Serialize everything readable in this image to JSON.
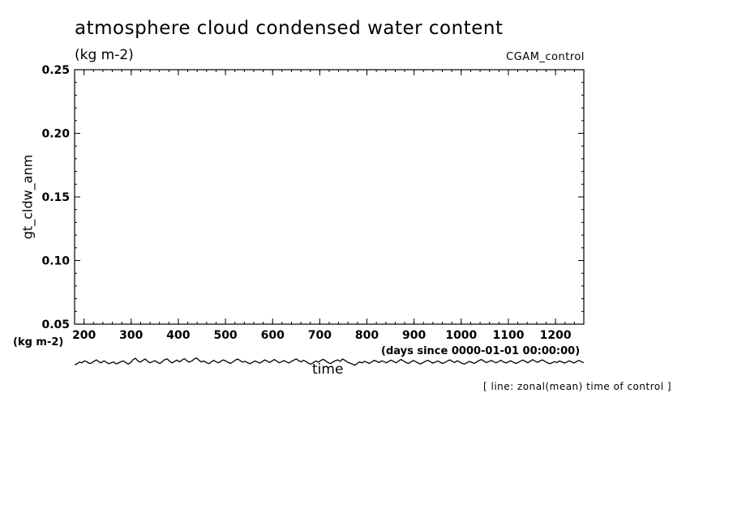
{
  "chart_data": {
    "type": "line",
    "title": "atmosphere cloud condensed water content",
    "units": "(kg m-2)",
    "dataset": "CGAM_control",
    "ylabel": "gt_cldw_anm",
    "yunits": "(kg m-2)",
    "xlabel": "time",
    "xunits": "(days since 0000-01-01 00:00:00)",
    "note": "[ line: zonal(mean) time of control ]",
    "xlim": [
      180,
      1260
    ],
    "ylim": [
      0.05,
      0.25
    ],
    "x_ticks": [
      200,
      300,
      400,
      500,
      600,
      700,
      800,
      900,
      1000,
      1100,
      1200
    ],
    "x_tick_labels": [
      "200",
      "300",
      "400",
      "500",
      "600",
      "700",
      "800",
      "900",
      "1000",
      "1100",
      "1200"
    ],
    "y_ticks": [
      0.05,
      0.1,
      0.15,
      0.2,
      0.25
    ],
    "y_tick_labels": [
      "0.05",
      "0.10",
      "0.15",
      "0.20",
      "0.25"
    ],
    "grid": false,
    "series": [
      {
        "x_start": 180,
        "x_end": 1260,
        "values": [
          0.0181,
          0.0188,
          0.0202,
          0.0196,
          0.0211,
          0.0205,
          0.0191,
          0.0195,
          0.0208,
          0.0219,
          0.0203,
          0.0197,
          0.0212,
          0.02,
          0.019,
          0.0196,
          0.0203,
          0.0188,
          0.0194,
          0.0205,
          0.0211,
          0.0199,
          0.0186,
          0.0198,
          0.0221,
          0.0232,
          0.021,
          0.0201,
          0.0215,
          0.0226,
          0.0208,
          0.0196,
          0.0206,
          0.0213,
          0.0199,
          0.0191,
          0.0205,
          0.0221,
          0.0227,
          0.0209,
          0.0195,
          0.0207,
          0.0218,
          0.0203,
          0.0216,
          0.0229,
          0.0214,
          0.0201,
          0.0209,
          0.0224,
          0.0235,
          0.0218,
          0.0203,
          0.0211,
          0.0199,
          0.0189,
          0.0201,
          0.0216,
          0.0205,
          0.0196,
          0.0208,
          0.0219,
          0.0211,
          0.02,
          0.0192,
          0.0204,
          0.0217,
          0.0226,
          0.0213,
          0.0201,
          0.0208,
          0.0197,
          0.0189,
          0.0199,
          0.0211,
          0.0202,
          0.0194,
          0.0206,
          0.0219,
          0.021,
          0.0199,
          0.0211,
          0.0222,
          0.0209,
          0.0196,
          0.0205,
          0.0214,
          0.0203,
          0.0195,
          0.0207,
          0.0218,
          0.0227,
          0.0213,
          0.0204,
          0.0216,
          0.0206,
          0.0193,
          0.0186,
          0.0198,
          0.021,
          0.0201,
          0.0214,
          0.0224,
          0.0212,
          0.0199,
          0.019,
          0.0202,
          0.0213,
          0.0219,
          0.0207,
          0.0226,
          0.0215,
          0.0201,
          0.0194,
          0.0186,
          0.0178,
          0.0191,
          0.0203,
          0.0195,
          0.0208,
          0.02,
          0.0191,
          0.0204,
          0.0216,
          0.0207,
          0.0198,
          0.0212,
          0.0205,
          0.0196,
          0.0208,
          0.0217,
          0.0206,
          0.0196,
          0.0211,
          0.0222,
          0.0211,
          0.0199,
          0.0191,
          0.0203,
          0.0214,
          0.0206,
          0.0195,
          0.0187,
          0.0198,
          0.0208,
          0.0216,
          0.0205,
          0.0194,
          0.0201,
          0.0211,
          0.0202,
          0.0191,
          0.0199,
          0.021,
          0.0219,
          0.0208,
          0.0199,
          0.0212,
          0.0203,
          0.0192,
          0.0186,
          0.0197,
          0.0207,
          0.02,
          0.0191,
          0.0203,
          0.0214,
          0.0222,
          0.0209,
          0.0198,
          0.0205,
          0.0215,
          0.0205,
          0.0196,
          0.0206,
          0.0216,
          0.0204,
          0.0195,
          0.0203,
          0.0212,
          0.0201,
          0.0191,
          0.0199,
          0.0209,
          0.0218,
          0.0207,
          0.0197,
          0.0208,
          0.0221,
          0.0209,
          0.02,
          0.021,
          0.0219,
          0.0208,
          0.0198,
          0.0189,
          0.0197,
          0.0206,
          0.0199,
          0.0211,
          0.0203,
          0.0194,
          0.0202,
          0.0212,
          0.0203,
          0.0195,
          0.0206,
          0.0215,
          0.0205,
          0.0196
        ]
      }
    ]
  }
}
